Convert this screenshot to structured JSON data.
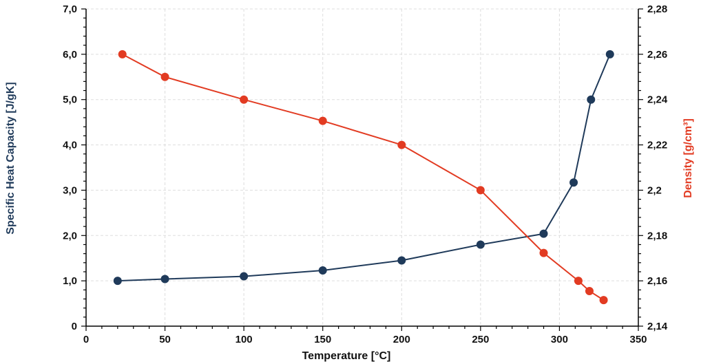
{
  "chart_data": {
    "type": "line",
    "xlabel": "Temperature [°C]",
    "ylabel": "Specific Heat Capacity [J/gK]",
    "y2label": "Density [g/cm³]",
    "xlim": [
      0,
      350
    ],
    "ylim": [
      0,
      7
    ],
    "y2lim": [
      2.14,
      2.28
    ],
    "x_ticks": [
      "0",
      "50",
      "100",
      "150",
      "200",
      "250",
      "300",
      "350"
    ],
    "y_ticks": [
      "0",
      "1,0",
      "2,0",
      "3,0",
      "4,0",
      "5,0",
      "6,0",
      "7,0"
    ],
    "y2_ticks": [
      "2,14",
      "2,16",
      "2,18",
      "2,2",
      "2,22",
      "2,24",
      "2,26",
      "2,28"
    ],
    "grid": true,
    "series": [
      {
        "name": "Specific Heat Capacity",
        "axis": "left",
        "color": "#1f3a5a",
        "x": [
          20,
          50,
          100,
          150,
          200,
          250,
          290,
          309,
          320,
          332
        ],
        "y": [
          1.0,
          1.04,
          1.1,
          1.23,
          1.45,
          1.8,
          2.04,
          3.17,
          5.0,
          6.0
        ]
      },
      {
        "name": "Density",
        "axis": "right",
        "color": "#e23b22",
        "x": [
          23,
          50,
          100,
          150,
          200,
          250,
          290,
          312,
          319,
          328
        ],
        "y": [
          2.26,
          2.25,
          2.24,
          2.2306,
          2.22,
          2.2,
          2.1723,
          2.16,
          2.1555,
          2.1515
        ]
      }
    ]
  }
}
